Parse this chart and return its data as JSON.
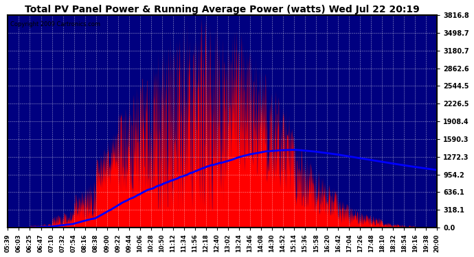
{
  "title": "Total PV Panel Power & Running Average Power (watts) Wed Jul 22 20:19",
  "copyright": "Copyright 2009 Cartronics.com",
  "ymax": 3816.8,
  "ymin": 0.0,
  "yticks": [
    0.0,
    318.1,
    636.1,
    954.2,
    1272.3,
    1590.3,
    1908.4,
    2226.5,
    2544.5,
    2862.6,
    3180.7,
    3498.7,
    3816.8
  ],
  "background_color": "#000080",
  "fill_color": "#FF0000",
  "avg_line_color": "#0000FF",
  "grid_color": "#FFFFFF",
  "xtick_labels": [
    "05:39",
    "06:03",
    "06:25",
    "06:47",
    "07:10",
    "07:32",
    "07:54",
    "08:16",
    "08:38",
    "09:00",
    "09:22",
    "09:44",
    "10:06",
    "10:28",
    "10:50",
    "11:12",
    "11:34",
    "11:56",
    "12:18",
    "12:40",
    "13:02",
    "13:24",
    "13:46",
    "14:08",
    "14:30",
    "14:52",
    "15:14",
    "15:36",
    "15:58",
    "16:20",
    "16:42",
    "17:04",
    "17:26",
    "17:48",
    "18:10",
    "18:32",
    "18:54",
    "19:16",
    "19:38",
    "20:00"
  ],
  "n_xticks": 40,
  "figsize": [
    6.9,
    3.75
  ],
  "dpi": 100
}
